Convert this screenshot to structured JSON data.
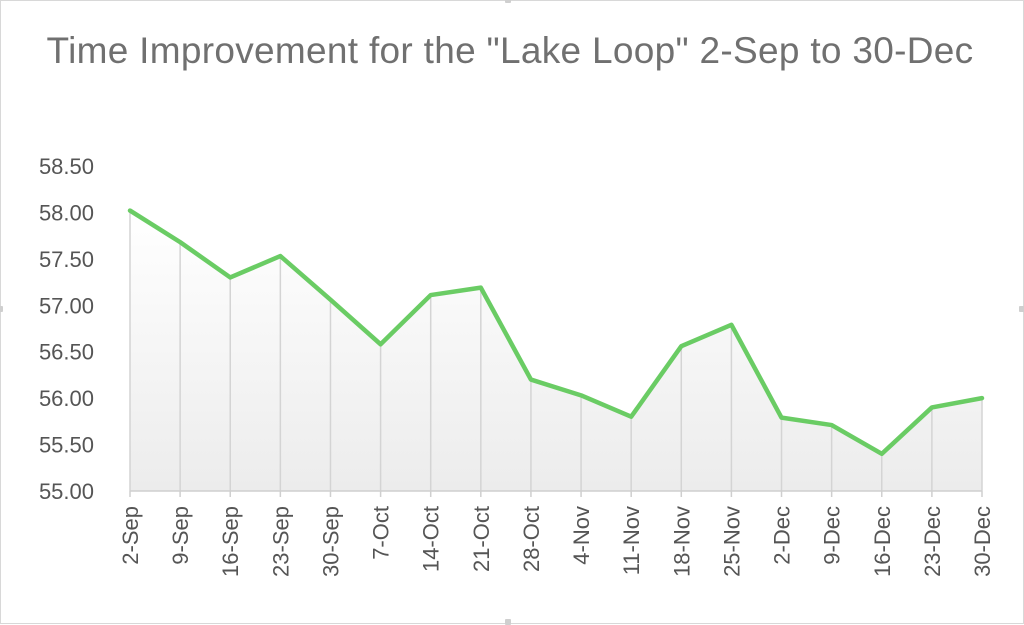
{
  "chart_data": {
    "type": "area",
    "title": "Time Improvement for the \"Lake Loop\" 2-Sep to 30-Dec",
    "xlabel": "",
    "ylabel": "",
    "ylim": [
      55.0,
      58.5
    ],
    "yticks": [
      "55.00",
      "55.50",
      "56.00",
      "56.50",
      "57.00",
      "57.50",
      "58.00",
      "58.50"
    ],
    "grid": "vertical drop lines",
    "legend": "none",
    "line_color": "#6acc64",
    "categories": [
      "2-Sep",
      "9-Sep",
      "16-Sep",
      "23-Sep",
      "30-Sep",
      "7-Oct",
      "14-Oct",
      "21-Oct",
      "28-Oct",
      "4-Nov",
      "11-Nov",
      "18-Nov",
      "25-Nov",
      "2-Dec",
      "9-Dec",
      "16-Dec",
      "23-Dec",
      "30-Dec"
    ],
    "values": [
      58.02,
      57.68,
      57.3,
      57.53,
      57.06,
      56.58,
      57.11,
      57.19,
      56.2,
      56.03,
      55.8,
      56.56,
      56.79,
      55.79,
      55.71,
      55.4,
      55.9,
      56.0
    ]
  }
}
